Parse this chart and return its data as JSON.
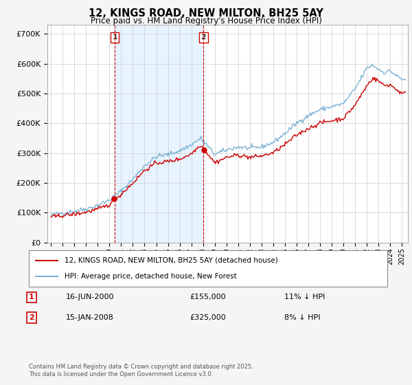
{
  "title": "12, KINGS ROAD, NEW MILTON, BH25 5AY",
  "subtitle": "Price paid vs. HM Land Registry's House Price Index (HPI)",
  "ytick_values": [
    0,
    100000,
    200000,
    300000,
    400000,
    500000,
    600000,
    700000
  ],
  "ylim": [
    0,
    730000
  ],
  "xlim_start": 1994.7,
  "xlim_end": 2025.5,
  "hpi_color": "#7fb3d3",
  "price_color": "#cc0000",
  "vline_color": "#cc0000",
  "shade_color": "#ddeeff",
  "sale1_x": 2000.458,
  "sale1_label": "1",
  "sale1_price": 155000,
  "sale2_x": 2008.042,
  "sale2_label": "2",
  "sale2_price": 325000,
  "legend_line1": "12, KINGS ROAD, NEW MILTON, BH25 5AY (detached house)",
  "legend_line2": "HPI: Average price, detached house, New Forest",
  "annotation1_num": "1",
  "annotation1_date": "16-JUN-2000",
  "annotation1_price": "£155,000",
  "annotation1_hpi": "11% ↓ HPI",
  "annotation2_num": "2",
  "annotation2_date": "15-JAN-2008",
  "annotation2_price": "£325,000",
  "annotation2_hpi": "8% ↓ HPI",
  "footer": "Contains HM Land Registry data © Crown copyright and database right 2025.\nThis data is licensed under the Open Government Licence v3.0.",
  "fig_facecolor": "#f0f0f0",
  "plot_bg_color": "#ffffff",
  "grid_color": "#cccccc"
}
